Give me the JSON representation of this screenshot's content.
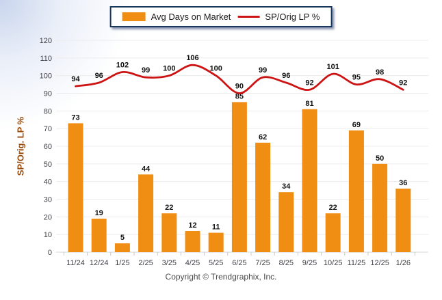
{
  "legend": {
    "bar_label": "Avg Days on Market",
    "line_label": "SP/Orig LP %"
  },
  "y_axis": {
    "title": "SP/Orig. LP %"
  },
  "footer": {
    "text": "Copyright © Trendgraphix, Inc."
  },
  "colors": {
    "bar": "#ef8e13",
    "line": "#cc1414",
    "axis_title": "#974806",
    "grid": "#ececec",
    "baseline": "#d5d5d5",
    "tick": "#c9c9c9",
    "value_label": "#111111",
    "tick_text": "#3f3f46",
    "legend_border": "#17375d"
  },
  "chart_data": {
    "type": "combo",
    "categories": [
      "11/24",
      "12/24",
      "1/25",
      "2/25",
      "3/25",
      "4/25",
      "5/25",
      "6/25",
      "7/25",
      "8/25",
      "9/25",
      "10/25",
      "11/25",
      "12/25",
      "1/26"
    ],
    "series": [
      {
        "name": "Avg Days on Market",
        "type": "bar",
        "color": "#ef8e13",
        "values": [
          73,
          19,
          5,
          44,
          22,
          12,
          11,
          85,
          62,
          34,
          81,
          22,
          69,
          50,
          36
        ]
      },
      {
        "name": "SP/Orig LP %",
        "type": "line",
        "color": "#cc1414",
        "values": [
          94,
          96,
          102,
          99,
          100,
          106,
          100,
          90,
          99,
          96,
          92,
          101,
          95,
          98,
          92
        ]
      }
    ],
    "title": "",
    "xlabel": "",
    "ylabel": "SP/Orig. LP %",
    "ylim": [
      0,
      120
    ],
    "ytick_step": 10,
    "grid": true,
    "data_labels": true,
    "legend_position": "top-center"
  }
}
